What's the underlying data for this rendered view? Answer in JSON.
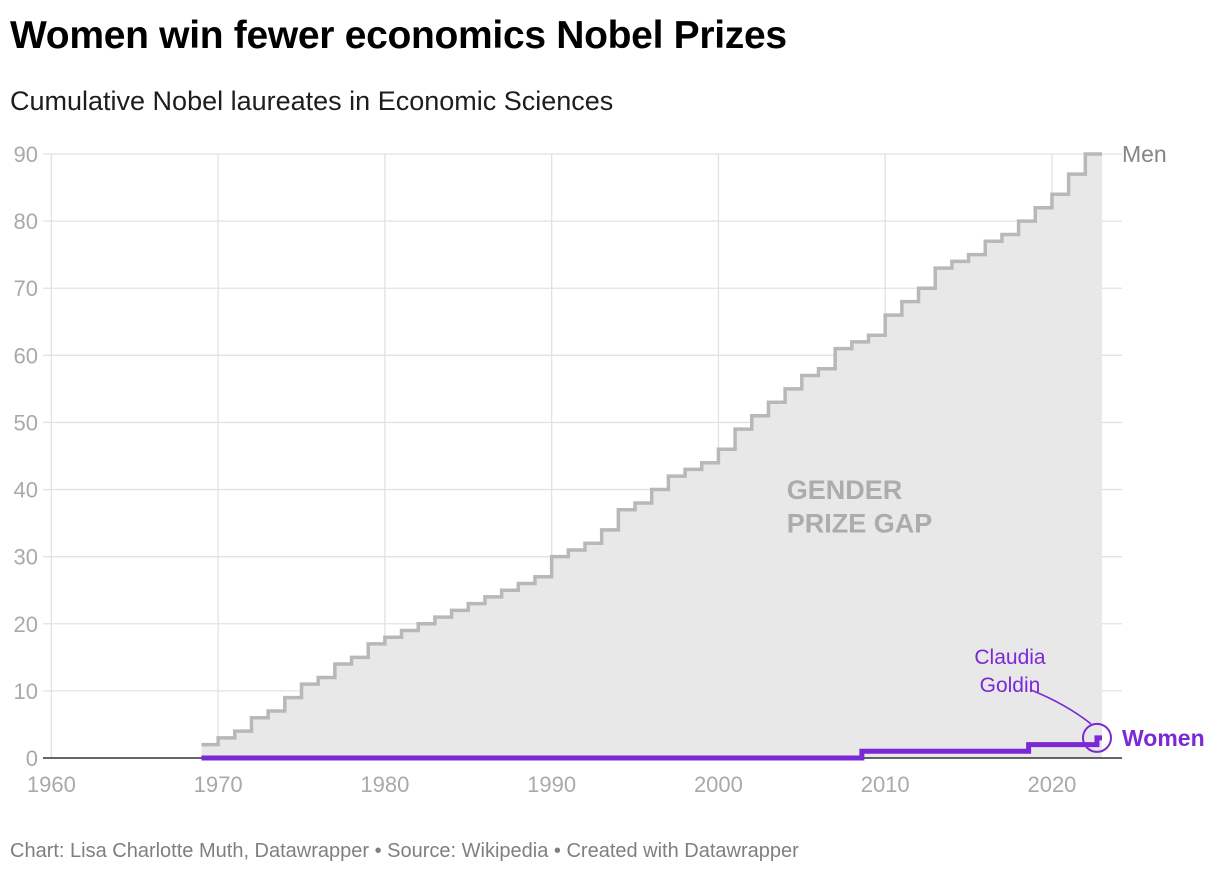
{
  "title": "Women win fewer economics Nobel Prizes",
  "subtitle": "Cumulative Nobel laureates in Economic Sciences",
  "footer": "Chart: Lisa Charlotte Muth, Datawrapper • Source: Wikipedia • Created with Datawrapper",
  "colors": {
    "men_line": "#b8b8b8",
    "men_area": "#e8e8e8",
    "women_line": "#7b29d6",
    "grid": "#e2e2e2",
    "axis": "#333333"
  },
  "chart_data": {
    "type": "area",
    "title": "Women win fewer economics Nobel Prizes",
    "subtitle": "Cumulative Nobel laureates in Economic Sciences",
    "xlabel": "",
    "ylabel": "",
    "xlim": [
      1959.5,
      2024.2
    ],
    "ylim": [
      0,
      90
    ],
    "x_ticks": [
      "1960",
      "1970",
      "1980",
      "1990",
      "2000",
      "2010",
      "2020"
    ],
    "y_ticks": [
      "0",
      "10",
      "20",
      "30",
      "40",
      "50",
      "60",
      "70",
      "80",
      "90"
    ],
    "grid": true,
    "step": true,
    "series": [
      {
        "name": "Men",
        "x": [
          1969,
          1970,
          1971,
          1972,
          1973,
          1974,
          1975,
          1976,
          1977,
          1978,
          1979,
          1980,
          1981,
          1982,
          1983,
          1984,
          1985,
          1986,
          1987,
          1988,
          1989,
          1990,
          1991,
          1992,
          1993,
          1994,
          1995,
          1996,
          1997,
          1998,
          1999,
          2000,
          2001,
          2002,
          2003,
          2004,
          2005,
          2006,
          2007,
          2008,
          2009,
          2010,
          2011,
          2012,
          2013,
          2014,
          2015,
          2016,
          2017,
          2018,
          2019,
          2020,
          2021,
          2022,
          2023
        ],
        "values": [
          2,
          3,
          4,
          6,
          7,
          9,
          11,
          12,
          14,
          15,
          17,
          18,
          19,
          20,
          21,
          22,
          23,
          24,
          25,
          26,
          27,
          30,
          31,
          32,
          34,
          37,
          38,
          40,
          42,
          43,
          44,
          46,
          49,
          51,
          53,
          55,
          57,
          58,
          61,
          62,
          63,
          66,
          68,
          70,
          73,
          74,
          75,
          77,
          78,
          80,
          82,
          84,
          87,
          90,
          90
        ]
      },
      {
        "name": "Women",
        "x": [
          1969,
          2008.6,
          2018.6,
          2022.7,
          2023
        ],
        "values": [
          0,
          1,
          2,
          3,
          3
        ]
      }
    ],
    "labels": {
      "men": "Men",
      "women": "Women",
      "gap_line1": "GENDER",
      "gap_line2": "PRIZE GAP"
    },
    "annotation": {
      "line1": "Claudia",
      "line2": "Goldin",
      "x": 2022.7,
      "y": 3
    }
  }
}
